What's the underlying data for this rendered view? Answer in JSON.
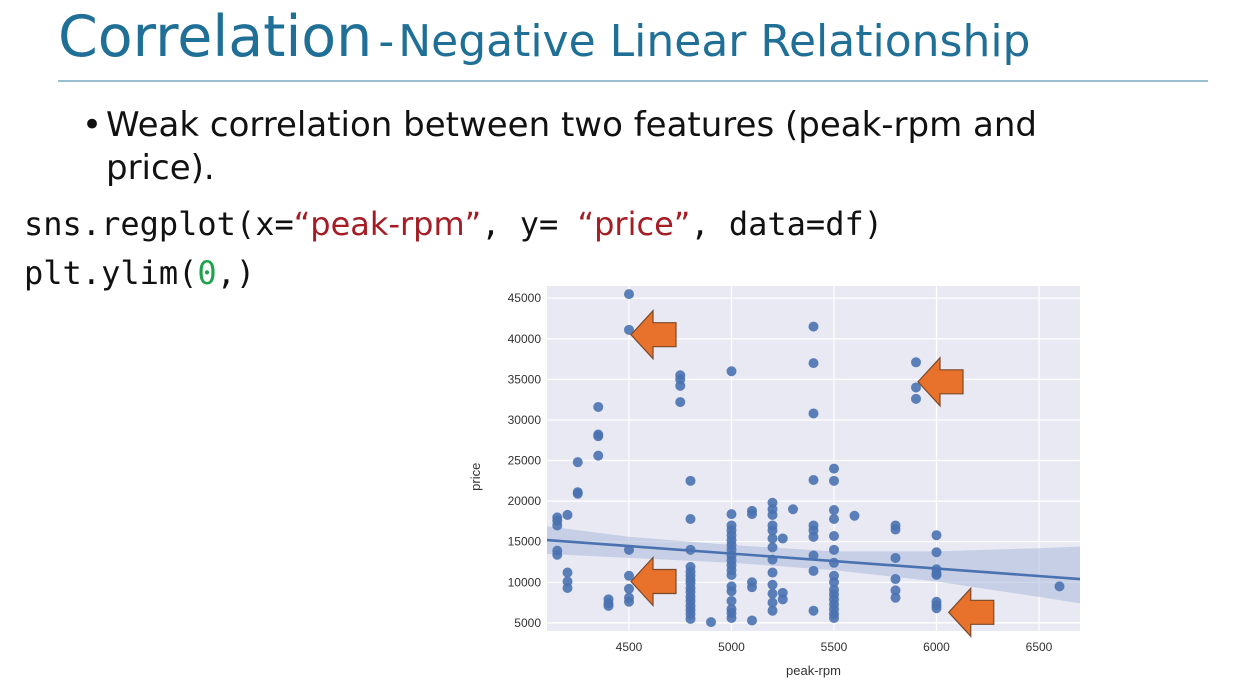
{
  "slide": {
    "title_main": "Correlation",
    "title_sep": "-",
    "title_sub": "Negative Linear Relationship",
    "bullet_symbol": "•",
    "bullet_text": "Weak  correlation between two features (peak-rpm and price).",
    "code_line1": {
      "p1": "sns.regplot(x=",
      "s1": "“peak-rpm”",
      "p2": ", y= ",
      "s2": "“price”",
      "p3": ", data=df)"
    },
    "code_line2": {
      "p1": "plt.ylim(",
      "n1": "0",
      "p2": ",)"
    }
  },
  "chart_data": {
    "type": "scatter",
    "title": "",
    "xlabel": "peak-rpm",
    "ylabel": "price",
    "xlim": [
      4100,
      6700
    ],
    "ylim": [
      4000,
      46500
    ],
    "xticks": [
      4500,
      5000,
      5500,
      6000,
      6500
    ],
    "yticks": [
      5000,
      10000,
      15000,
      20000,
      25000,
      30000,
      35000,
      40000,
      45000
    ],
    "grid": true,
    "background_color": "#e9e9f3",
    "point_color": "#4a72b0",
    "line_color": "#4a72b0",
    "band_color": "#aab9da",
    "arrow_color": "#e8712b",
    "arrow_stroke": "#7a4a2a",
    "regression": {
      "x": [
        4100,
        6700
      ],
      "y": [
        15200,
        10400
      ]
    },
    "confidence_band": {
      "x": [
        4100,
        4500,
        5000,
        5500,
        6000,
        6500,
        6700
      ],
      "upper": [
        16900,
        15600,
        14600,
        13800,
        13800,
        14200,
        14400
      ],
      "lower": [
        13500,
        13000,
        12400,
        11500,
        10100,
        8200,
        7400
      ]
    },
    "points": [
      [
        4150,
        17000
      ],
      [
        4150,
        17600
      ],
      [
        4150,
        18000
      ],
      [
        4150,
        13400
      ],
      [
        4150,
        13900
      ],
      [
        4200,
        18300
      ],
      [
        4200,
        11200
      ],
      [
        4200,
        10100
      ],
      [
        4200,
        9300
      ],
      [
        4250,
        24800
      ],
      [
        4250,
        21100
      ],
      [
        4250,
        20900
      ],
      [
        4350,
        31600
      ],
      [
        4350,
        28200
      ],
      [
        4350,
        28000
      ],
      [
        4350,
        25600
      ],
      [
        4400,
        7900
      ],
      [
        4400,
        7400
      ],
      [
        4400,
        7100
      ],
      [
        4500,
        45500
      ],
      [
        4500,
        41100
      ],
      [
        4500,
        14000
      ],
      [
        4500,
        10800
      ],
      [
        4500,
        9200
      ],
      [
        4500,
        8100
      ],
      [
        4500,
        7600
      ],
      [
        4750,
        35500
      ],
      [
        4750,
        35000
      ],
      [
        4750,
        34200
      ],
      [
        4750,
        32200
      ],
      [
        4800,
        22500
      ],
      [
        4800,
        17800
      ],
      [
        4800,
        14000
      ],
      [
        4800,
        11900
      ],
      [
        4800,
        11300
      ],
      [
        4800,
        10800
      ],
      [
        4800,
        10300
      ],
      [
        4800,
        9900
      ],
      [
        4800,
        9300
      ],
      [
        4800,
        8800
      ],
      [
        4800,
        8200
      ],
      [
        4800,
        7700
      ],
      [
        4800,
        7100
      ],
      [
        4800,
        6600
      ],
      [
        4800,
        6100
      ],
      [
        4800,
        5500
      ],
      [
        4900,
        5100
      ],
      [
        5000,
        36000
      ],
      [
        5000,
        18400
      ],
      [
        5000,
        17000
      ],
      [
        5000,
        16400
      ],
      [
        5000,
        15800
      ],
      [
        5000,
        15200
      ],
      [
        5000,
        14600
      ],
      [
        5000,
        14000
      ],
      [
        5000,
        13300
      ],
      [
        5000,
        12700
      ],
      [
        5000,
        12100
      ],
      [
        5000,
        11500
      ],
      [
        5000,
        10900
      ],
      [
        5000,
        9500
      ],
      [
        5000,
        8900
      ],
      [
        5000,
        7700
      ],
      [
        5000,
        6700
      ],
      [
        5000,
        6200
      ],
      [
        5000,
        5600
      ],
      [
        5100,
        18800
      ],
      [
        5100,
        18400
      ],
      [
        5100,
        10000
      ],
      [
        5100,
        9400
      ],
      [
        5100,
        5300
      ],
      [
        5200,
        19800
      ],
      [
        5200,
        19000
      ],
      [
        5200,
        18300
      ],
      [
        5200,
        17000
      ],
      [
        5200,
        16400
      ],
      [
        5200,
        15400
      ],
      [
        5200,
        14300
      ],
      [
        5200,
        12800
      ],
      [
        5200,
        11200
      ],
      [
        5200,
        9700
      ],
      [
        5200,
        8600
      ],
      [
        5200,
        7500
      ],
      [
        5200,
        6500
      ],
      [
        5250,
        15400
      ],
      [
        5250,
        8700
      ],
      [
        5250,
        7900
      ],
      [
        5300,
        19000
      ],
      [
        5400,
        41500
      ],
      [
        5400,
        37000
      ],
      [
        5400,
        30800
      ],
      [
        5400,
        22600
      ],
      [
        5400,
        17000
      ],
      [
        5400,
        16400
      ],
      [
        5400,
        15600
      ],
      [
        5400,
        13300
      ],
      [
        5400,
        11400
      ],
      [
        5400,
        6500
      ],
      [
        5500,
        24000
      ],
      [
        5500,
        22500
      ],
      [
        5500,
        18900
      ],
      [
        5500,
        17800
      ],
      [
        5500,
        15700
      ],
      [
        5500,
        14000
      ],
      [
        5500,
        12400
      ],
      [
        5500,
        10800
      ],
      [
        5500,
        10000
      ],
      [
        5500,
        9100
      ],
      [
        5500,
        8500
      ],
      [
        5500,
        7900
      ],
      [
        5500,
        7300
      ],
      [
        5500,
        6700
      ],
      [
        5500,
        6100
      ],
      [
        5500,
        5600
      ],
      [
        5600,
        18200
      ],
      [
        5800,
        17000
      ],
      [
        5800,
        16500
      ],
      [
        5800,
        13000
      ],
      [
        5800,
        10400
      ],
      [
        5800,
        9000
      ],
      [
        5800,
        8100
      ],
      [
        5900,
        37100
      ],
      [
        5900,
        34000
      ],
      [
        5900,
        32600
      ],
      [
        6000,
        15800
      ],
      [
        6000,
        13700
      ],
      [
        6000,
        11600
      ],
      [
        6000,
        11100
      ],
      [
        6000,
        10900
      ],
      [
        6000,
        7600
      ],
      [
        6000,
        7200
      ],
      [
        6000,
        6800
      ],
      [
        6600,
        9500
      ]
    ],
    "arrows": [
      {
        "tip_x": 4500,
        "tip_y": 40500,
        "direction": "left"
      },
      {
        "tip_x": 5900,
        "tip_y": 34700,
        "direction": "left"
      },
      {
        "tip_x": 4500,
        "tip_y": 10100,
        "direction": "left"
      },
      {
        "tip_x": 6050,
        "tip_y": 6300,
        "direction": "left"
      }
    ]
  }
}
